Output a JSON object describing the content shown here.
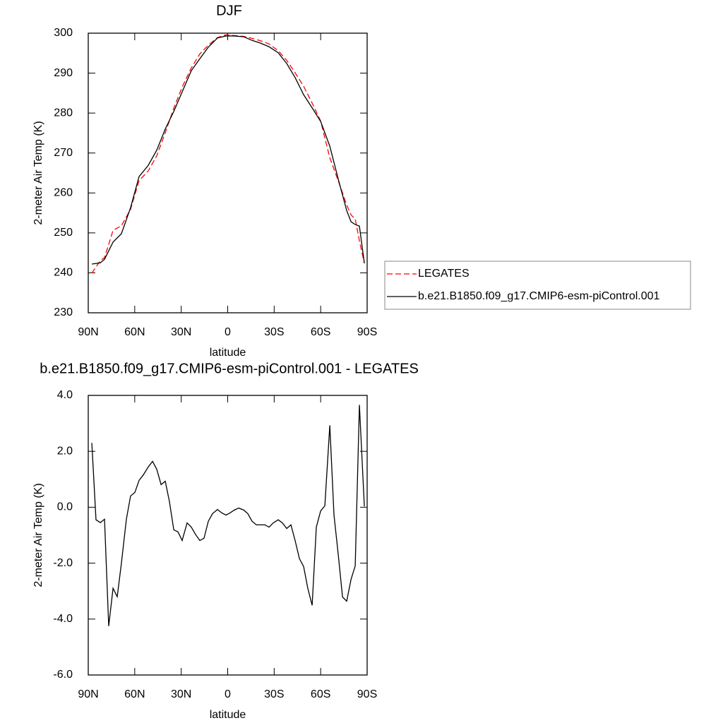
{
  "chart_data": [
    {
      "type": "line",
      "title": "DJF",
      "xlabel": "latitude",
      "ylabel": "2-meter Air Temp (K)",
      "x": [
        87.7,
        82.2,
        79.5,
        74,
        68.6,
        62.7,
        57.2,
        51.3,
        45.8,
        40.3,
        34.8,
        29.4,
        23.5,
        18,
        12.5,
        6.6,
        1.1,
        -4.3,
        -10.3,
        -15.7,
        -21.2,
        -26.7,
        -32.6,
        -38.1,
        -43.5,
        -49,
        -54.5,
        -60,
        -65.9,
        -71.4,
        -76.8,
        -79.6,
        -82.3,
        -85,
        -88.2
      ],
      "series": [
        {
          "name": "LEGATES",
          "color": "#ff0000",
          "dash": true,
          "values": [
            239.9,
            243.1,
            243.8,
            250.6,
            251.8,
            255.9,
            263.1,
            265.5,
            269.3,
            275.1,
            281.2,
            286.5,
            291.3,
            294.8,
            297.0,
            298.9,
            299.6,
            299.4,
            299.2,
            298.7,
            298.1,
            297.3,
            295.6,
            293.2,
            290.1,
            286.7,
            282.5,
            278.0,
            268.8,
            263.0,
            257.0,
            254.5,
            253.5,
            248.0,
            242.4
          ]
        },
        {
          "name": "b.e21.B1850.f09_g17.CMIP6-esm-piControl.001",
          "color": "#000000",
          "dash": false,
          "values": [
            242.2,
            242.5,
            243.4,
            247.7,
            249.8,
            256.3,
            264.1,
            266.9,
            270.7,
            276.0,
            280.4,
            285.3,
            290.6,
            293.6,
            296.5,
            298.8,
            299.3,
            299.3,
            299.1,
            298.2,
            297.5,
            296.6,
            295.1,
            292.4,
            288.9,
            284.6,
            281.3,
            277.9,
            271.7,
            263.4,
            255.6,
            252.8,
            252.1,
            251.7,
            242.4
          ]
        }
      ],
      "xlim": [
        90,
        -90
      ],
      "xticks": [
        {
          "value": 90,
          "label": "90N"
        },
        {
          "value": 60,
          "label": "60N"
        },
        {
          "value": 30,
          "label": "30N"
        },
        0,
        {
          "value": -30,
          "label": "30S"
        },
        {
          "value": -60,
          "label": "60S"
        },
        {
          "value": -90,
          "label": "90S"
        }
      ],
      "ylim": [
        230,
        300
      ],
      "yticks": [
        230,
        240,
        250,
        260,
        270,
        280,
        290,
        300
      ],
      "legend": "right"
    },
    {
      "type": "line",
      "title": "b.e21.B1850.f09_g17.CMIP6-esm-piControl.001 - LEGATES",
      "xlabel": "latitude",
      "ylabel": "2-meter Air Temp (K)",
      "x": [
        87.7,
        85,
        82.2,
        79.5,
        76.8,
        74,
        71.3,
        68.6,
        65.4,
        62.7,
        59.9,
        57.2,
        54.4,
        51.3,
        48.5,
        45.8,
        43,
        40.3,
        37.6,
        34.8,
        32.1,
        29.4,
        26.2,
        23.5,
        20.7,
        18,
        15.3,
        12.5,
        9.8,
        6.6,
        3.9,
        1.1,
        -1.6,
        -4.3,
        -7.1,
        -10.3,
        -13,
        -15.7,
        -18.5,
        -21.2,
        -24,
        -26.7,
        -29.4,
        -32.6,
        -35.3,
        -38.1,
        -40.8,
        -43.5,
        -46.3,
        -49,
        -51.7,
        -54.5,
        -57.2,
        -60,
        -62.7,
        -65.9,
        -68.6,
        -71.4,
        -74.1,
        -76.8,
        -79.6,
        -82.3,
        -85,
        -88.2
      ],
      "series": [
        {
          "name": "difference",
          "color": "#000000",
          "dash": false,
          "values": [
            2.3,
            -0.45,
            -0.55,
            -0.43,
            -4.25,
            -2.9,
            -3.2,
            -2.0,
            -0.43,
            0.4,
            0.53,
            0.96,
            1.16,
            1.44,
            1.64,
            1.36,
            0.81,
            0.93,
            0.2,
            -0.81,
            -0.88,
            -1.19,
            -0.56,
            -0.71,
            -0.98,
            -1.19,
            -1.11,
            -0.5,
            -0.23,
            -0.08,
            -0.2,
            -0.28,
            -0.2,
            -0.1,
            -0.03,
            -0.1,
            -0.23,
            -0.5,
            -0.63,
            -0.63,
            -0.63,
            -0.71,
            -0.56,
            -0.45,
            -0.56,
            -0.76,
            -0.63,
            -1.19,
            -1.84,
            -2.12,
            -2.9,
            -3.51,
            -0.71,
            -0.13,
            0.05,
            2.93,
            -0.28,
            -1.72,
            -3.21,
            -3.36,
            -2.58,
            -2.1,
            3.66,
            0.03
          ]
        }
      ],
      "xlim": [
        90,
        -90
      ],
      "xticks": [
        {
          "value": 90,
          "label": "90N"
        },
        {
          "value": 60,
          "label": "60N"
        },
        {
          "value": 30,
          "label": "30N"
        },
        0,
        {
          "value": -30,
          "label": "30S"
        },
        {
          "value": -60,
          "label": "60S"
        },
        {
          "value": -90,
          "label": "90S"
        }
      ],
      "ylim": [
        -6,
        4
      ],
      "yticks": [
        {
          "value": -6,
          "label": "-6.0"
        },
        {
          "value": -4,
          "label": "-4.0"
        },
        {
          "value": -2,
          "label": "-2.0"
        },
        {
          "value": 0,
          "label": "0.0"
        },
        {
          "value": 2,
          "label": "2.0"
        },
        {
          "value": 4,
          "label": "4.0"
        }
      ]
    }
  ]
}
